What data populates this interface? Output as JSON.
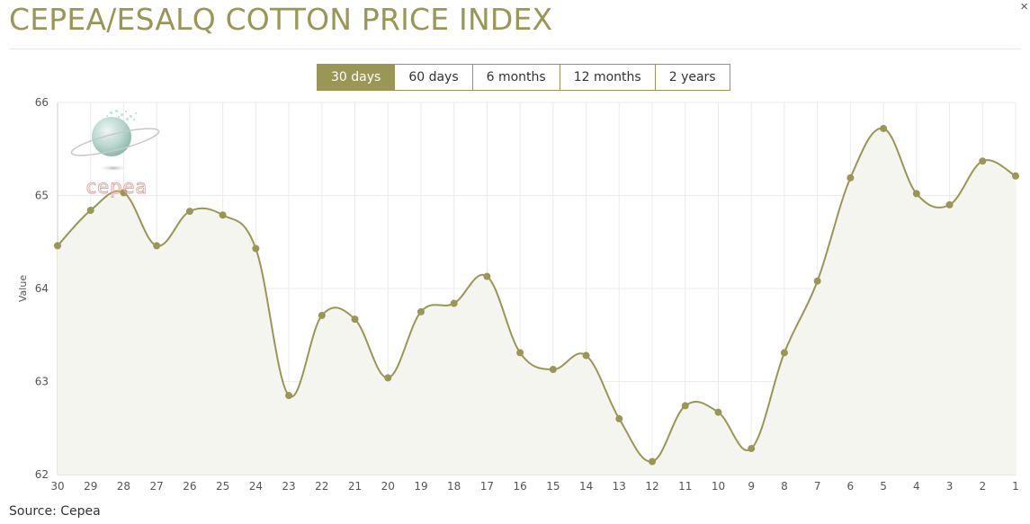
{
  "page": {
    "title": "CEPEA/ESALQ COTTON PRICE INDEX",
    "close_label": "×",
    "source": "Source: Cepea",
    "logo_text": "cepea"
  },
  "tabs": [
    {
      "label": "30 days",
      "active": true
    },
    {
      "label": "60 days",
      "active": false
    },
    {
      "label": "6 months",
      "active": false
    },
    {
      "label": "12 months",
      "active": false
    },
    {
      "label": "2 years",
      "active": false
    }
  ],
  "colors": {
    "accent": "#9a9655",
    "area_fill": "#f5f5ef",
    "grid": "#ebebeb"
  },
  "chart_data": {
    "type": "area",
    "ylabel": "Value",
    "ylim": [
      62,
      66
    ],
    "yticks": [
      62,
      63,
      64,
      65,
      66
    ],
    "grid": true,
    "categories": [
      "30",
      "29",
      "28",
      "27",
      "26",
      "25",
      "24",
      "23",
      "22",
      "21",
      "20",
      "19",
      "18",
      "17",
      "16",
      "15",
      "14",
      "13",
      "12",
      "11",
      "10",
      "9",
      "8",
      "7",
      "6",
      "5",
      "4",
      "3",
      "2",
      "1"
    ],
    "series": [
      {
        "values": [
          64.46,
          64.84,
          65.03,
          64.46,
          64.83,
          64.79,
          64.43,
          62.85,
          63.71,
          63.67,
          63.04,
          63.75,
          63.84,
          64.13,
          63.31,
          63.13,
          63.28,
          62.6,
          62.14,
          62.74,
          62.67,
          62.28,
          63.31,
          64.08,
          65.19,
          65.72,
          65.02,
          64.9,
          65.37,
          65.21
        ]
      }
    ]
  }
}
